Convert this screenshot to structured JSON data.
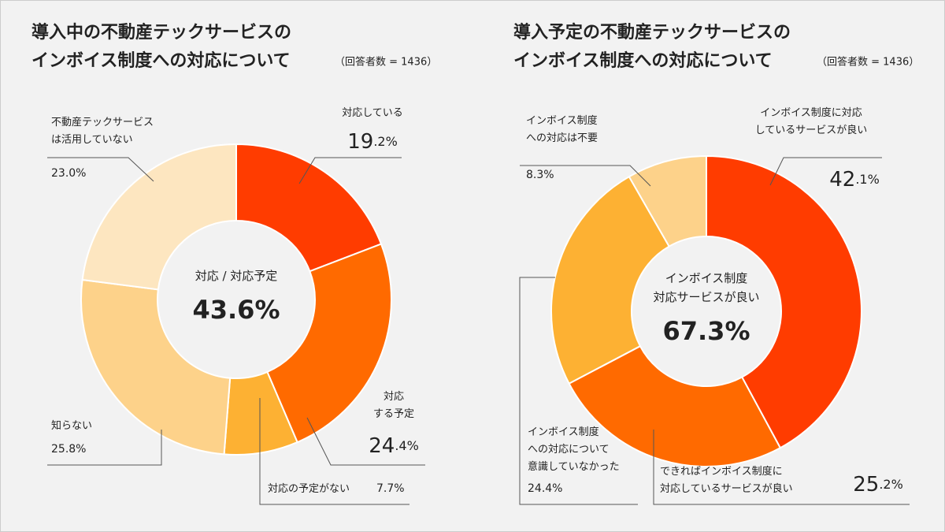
{
  "chart_data": [
    {
      "type": "pie",
      "title": "導入中の不動産テックサービスの\nインボイス制度への対応について",
      "subtitle": "（回答者数 = 1436）",
      "center_label": "対応 / 対応予定",
      "center_text": "43.6%",
      "categories": [
        "対応している",
        "対応\nする予定",
        "対応の予定がない",
        "知らない",
        "不動産テックサービス\nは活用していない"
      ],
      "values": [
        19.2,
        24.4,
        7.7,
        25.8,
        23.0
      ],
      "value_labels": [
        "19.2%",
        "24.4%",
        "7.7%",
        "25.8%",
        "23.0%"
      ],
      "colors": [
        "#ff3c00",
        "#ff6a00",
        "#fdb133",
        "#fdd28a",
        "#fde6c0"
      ]
    },
    {
      "type": "pie",
      "title": "導入予定の不動産テックサービスの\nインボイス制度への対応について",
      "subtitle": "（回答者数 = 1436）",
      "center_label": "インボイス制度\n対応サービスが良い",
      "center_text": "67.3%",
      "categories": [
        "インボイス制度に対応\nしているサービスが良い",
        "できればインボイス制度に\n対応しているサービスが良い",
        "インボイス制度\nへの対応について\n意識していなかった",
        "インボイス制度\nへの対応は不要"
      ],
      "values": [
        42.1,
        25.2,
        24.4,
        8.3
      ],
      "value_labels": [
        "42.1%",
        "25.2%",
        "24.4%",
        "8.3%"
      ],
      "colors": [
        "#ff3c00",
        "#ff6a00",
        "#fdb133",
        "#fdd28a"
      ]
    }
  ]
}
